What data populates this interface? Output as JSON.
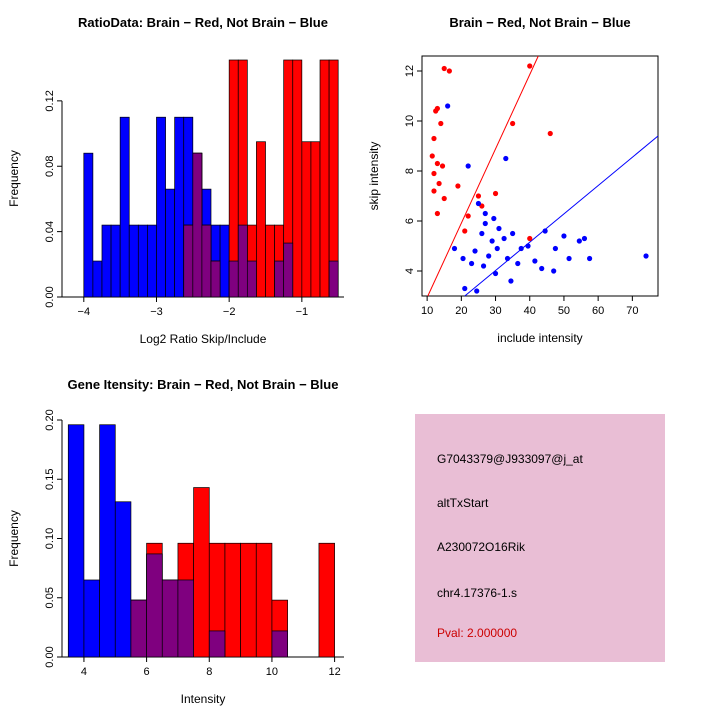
{
  "colors": {
    "red": "#FF0000",
    "blue": "#0000FF",
    "overlap": "#7F007F",
    "axis": "#000000",
    "panel_bg": "#E9BED5",
    "pval_text": "#CC0000"
  },
  "chart_data": [
    {
      "id": "ratio-histogram",
      "type": "bar",
      "title": "RatioData: Brain − Red, Not Brain − Blue",
      "xlabel": "Log2 Ratio Skip/Include",
      "ylabel": "Frequency",
      "xlim": [
        -4.3,
        -0.42
      ],
      "ylim": [
        0,
        0.145
      ],
      "bin_width": 0.125,
      "xticks": [
        -4,
        -3,
        -2,
        -1
      ],
      "xtick_labels": [
        "−4",
        "−3",
        "−2",
        "−1"
      ],
      "yticks": [
        0,
        0.04,
        0.08,
        0.12
      ],
      "ytick_labels": [
        "0.00",
        "0.04",
        "0.08",
        "0.12"
      ],
      "bins": [
        {
          "x": -4.0,
          "blue": 0.088,
          "red": 0
        },
        {
          "x": -3.875,
          "blue": 0.022,
          "red": 0
        },
        {
          "x": -3.75,
          "blue": 0.044,
          "red": 0
        },
        {
          "x": -3.625,
          "blue": 0.044,
          "red": 0
        },
        {
          "x": -3.5,
          "blue": 0.11,
          "red": 0
        },
        {
          "x": -3.375,
          "blue": 0.044,
          "red": 0
        },
        {
          "x": -3.25,
          "blue": 0.044,
          "red": 0
        },
        {
          "x": -3.125,
          "blue": 0.044,
          "red": 0
        },
        {
          "x": -3.0,
          "blue": 0.11,
          "red": 0
        },
        {
          "x": -2.875,
          "blue": 0.066,
          "red": 0
        },
        {
          "x": -2.75,
          "blue": 0.11,
          "red": 0
        },
        {
          "x": -2.625,
          "blue": 0.11,
          "red": 0.044
        },
        {
          "x": -2.5,
          "blue": 0.088,
          "red": 0.088
        },
        {
          "x": -2.375,
          "blue": 0.066,
          "red": 0.044
        },
        {
          "x": -2.25,
          "blue": 0.044,
          "red": 0.022
        },
        {
          "x": -2.125,
          "blue": 0.044,
          "red": 0
        },
        {
          "x": -2.0,
          "blue": 0.022,
          "red": 0.145
        },
        {
          "x": -1.875,
          "blue": 0.044,
          "red": 0.145
        },
        {
          "x": -1.75,
          "blue": 0.022,
          "red": 0.044
        },
        {
          "x": -1.625,
          "blue": 0,
          "red": 0.095
        },
        {
          "x": -1.5,
          "blue": 0,
          "red": 0.044
        },
        {
          "x": -1.375,
          "blue": 0.022,
          "red": 0.044
        },
        {
          "x": -1.25,
          "blue": 0.033,
          "red": 0.145
        },
        {
          "x": -1.125,
          "blue": 0,
          "red": 0.145
        },
        {
          "x": -1.0,
          "blue": 0,
          "red": 0.095
        },
        {
          "x": -0.875,
          "blue": 0,
          "red": 0.095
        },
        {
          "x": -0.75,
          "blue": 0,
          "red": 0.145
        },
        {
          "x": -0.625,
          "blue": 0.022,
          "red": 0.145
        }
      ]
    },
    {
      "id": "intensity-scatter",
      "type": "scatter",
      "title": "Brain − Red, Not Brain − Blue",
      "xlabel": "include intensity",
      "ylabel": "skip intensity",
      "xlim": [
        8.5,
        77.5
      ],
      "ylim": [
        3.0,
        12.6
      ],
      "xticks": [
        10,
        20,
        30,
        40,
        50,
        60,
        70
      ],
      "xtick_labels": [
        "10",
        "20",
        "30",
        "40",
        "50",
        "60",
        "70"
      ],
      "yticks": [
        4,
        6,
        8,
        10,
        12
      ],
      "ytick_labels": [
        "4",
        "6",
        "8",
        "10",
        "12"
      ],
      "red_points": [
        [
          13,
          10.5
        ],
        [
          15,
          12.1
        ],
        [
          16.5,
          12.0
        ],
        [
          12.5,
          10.4
        ],
        [
          14,
          9.9
        ],
        [
          12,
          9.3
        ],
        [
          11.5,
          8.6
        ],
        [
          13,
          8.3
        ],
        [
          14.5,
          8.2
        ],
        [
          12,
          7.9
        ],
        [
          13.5,
          7.5
        ],
        [
          12,
          7.2
        ],
        [
          15,
          6.9
        ],
        [
          13,
          6.3
        ],
        [
          19,
          7.4
        ],
        [
          22,
          6.2
        ],
        [
          25,
          7.0
        ],
        [
          30,
          7.1
        ],
        [
          35,
          9.9
        ],
        [
          46,
          9.5
        ],
        [
          40,
          12.2
        ],
        [
          21,
          5.6
        ],
        [
          40,
          5.3
        ],
        [
          26,
          6.6
        ]
      ],
      "blue_points": [
        [
          16,
          10.6
        ],
        [
          22,
          8.2
        ],
        [
          33,
          8.5
        ],
        [
          25,
          6.7
        ],
        [
          27,
          6.3
        ],
        [
          29.5,
          6.1
        ],
        [
          27,
          5.9
        ],
        [
          31,
          5.7
        ],
        [
          26,
          5.5
        ],
        [
          29,
          5.2
        ],
        [
          32.5,
          5.3
        ],
        [
          35,
          5.5
        ],
        [
          30.5,
          4.9
        ],
        [
          24,
          4.8
        ],
        [
          28,
          4.6
        ],
        [
          33.5,
          4.5
        ],
        [
          37.5,
          4.9
        ],
        [
          39.5,
          5.0
        ],
        [
          36.5,
          4.3
        ],
        [
          41.5,
          4.4
        ],
        [
          44.5,
          5.6
        ],
        [
          47.5,
          4.9
        ],
        [
          50,
          5.4
        ],
        [
          43.5,
          4.1
        ],
        [
          51.5,
          4.5
        ],
        [
          54.5,
          5.2
        ],
        [
          57.5,
          4.5
        ],
        [
          47,
          4.0
        ],
        [
          23,
          4.3
        ],
        [
          20.5,
          4.5
        ],
        [
          26.5,
          4.2
        ],
        [
          30,
          3.9
        ],
        [
          34.5,
          3.6
        ],
        [
          74,
          4.6
        ],
        [
          56,
          5.3
        ],
        [
          18,
          4.9
        ],
        [
          21,
          3.3
        ],
        [
          24.5,
          3.2
        ]
      ],
      "lines": [
        {
          "color": "red",
          "points": [
            [
              10.2,
              3.0
            ],
            [
              42.5,
              12.6
            ]
          ]
        },
        {
          "color": "blue",
          "points": [
            [
              21.0,
              3.0
            ],
            [
              77.5,
              9.4
            ]
          ]
        }
      ]
    },
    {
      "id": "gene-intensity-histogram",
      "type": "bar",
      "title": "Gene Itensity: Brain − Red, Not Brain − Blue",
      "xlabel": "Intensity",
      "ylabel": "Frequency",
      "xlim": [
        3.3,
        12.3
      ],
      "ylim": [
        0,
        0.2
      ],
      "bin_width": 0.5,
      "xticks": [
        4,
        6,
        8,
        10,
        12
      ],
      "xtick_labels": [
        "4",
        "6",
        "8",
        "10",
        "12"
      ],
      "yticks": [
        0,
        0.05,
        0.1,
        0.15,
        0.2
      ],
      "ytick_labels": [
        "0.00",
        "0.05",
        "0.10",
        "0.15",
        "0.20"
      ],
      "bins": [
        {
          "x": 3.5,
          "blue": 0.196,
          "red": 0
        },
        {
          "x": 4.0,
          "blue": 0.065,
          "red": 0
        },
        {
          "x": 4.5,
          "blue": 0.196,
          "red": 0
        },
        {
          "x": 5.0,
          "blue": 0.131,
          "red": 0
        },
        {
          "x": 5.5,
          "blue": 0.048,
          "red": 0.048
        },
        {
          "x": 6.0,
          "blue": 0.087,
          "red": 0.096
        },
        {
          "x": 6.5,
          "blue": 0.065,
          "red": 0.065
        },
        {
          "x": 7.0,
          "blue": 0.065,
          "red": 0.096
        },
        {
          "x": 7.5,
          "blue": 0,
          "red": 0.143
        },
        {
          "x": 8.0,
          "blue": 0.022,
          "red": 0.096
        },
        {
          "x": 8.5,
          "blue": 0,
          "red": 0.096
        },
        {
          "x": 9.0,
          "blue": 0,
          "red": 0.096
        },
        {
          "x": 9.5,
          "blue": 0,
          "red": 0.096
        },
        {
          "x": 10.0,
          "blue": 0.022,
          "red": 0.048
        },
        {
          "x": 10.5,
          "blue": 0,
          "red": 0
        },
        {
          "x": 11.0,
          "blue": 0,
          "red": 0
        },
        {
          "x": 11.5,
          "blue": 0,
          "red": 0.096
        }
      ]
    }
  ],
  "info_panel": {
    "lines": [
      "G7043379@J933097@j_at",
      "altTxStart",
      "A230072O16Rik",
      "chr4.17376-1.s"
    ],
    "pval_label": "Pval: 2.000000"
  }
}
